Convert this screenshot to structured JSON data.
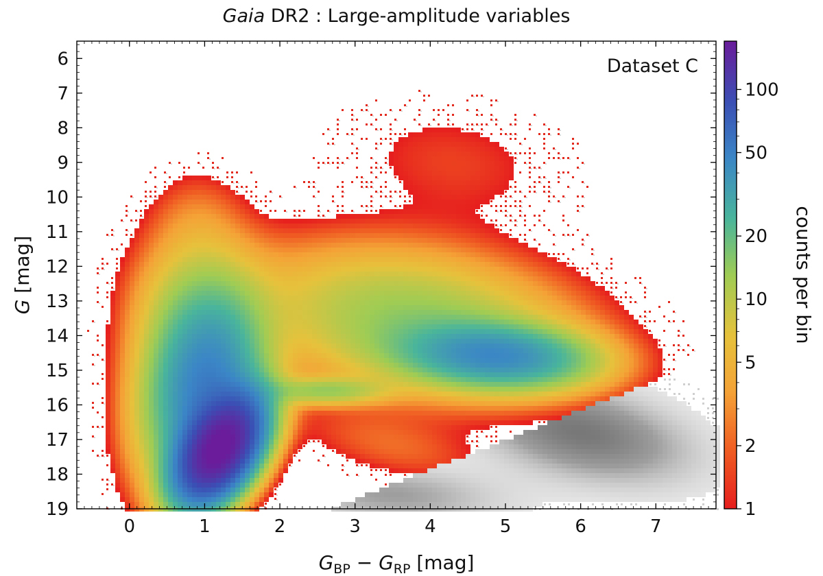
{
  "chart_data": {
    "type": "heatmap",
    "title_italic": "Gaia",
    "title_rest": " DR2 :  Large-amplitude variables",
    "annotation": "Dataset C",
    "xlabel": {
      "main1": "G",
      "sub1": "BP",
      "minus": " − ",
      "main2": "G",
      "sub2": "RP",
      "unit": "  [mag]"
    },
    "ylabel": {
      "main": "G",
      "unit": " [mag]"
    },
    "xlim": [
      -0.7,
      7.8
    ],
    "ylim": [
      19,
      5.5
    ],
    "x_ticks": [
      0,
      1,
      2,
      3,
      4,
      5,
      6,
      7
    ],
    "y_ticks": [
      6,
      7,
      8,
      9,
      10,
      11,
      12,
      13,
      14,
      15,
      16,
      17,
      18,
      19
    ],
    "colorbar": {
      "label": "counts per bin",
      "scale": "log",
      "min": 1,
      "max": 170,
      "ticks": [
        1,
        2,
        5,
        10,
        20,
        50,
        100
      ]
    },
    "density_components": [
      {
        "name": "main-sequence-core",
        "x": 1.2,
        "y": 17.3,
        "sx": 0.34,
        "sy": 0.9,
        "amp": 170,
        "rho": -0.45
      },
      {
        "name": "main-sequence-extension",
        "x": 1.0,
        "y": 15.6,
        "sx": 0.45,
        "sy": 1.5,
        "amp": 45,
        "rho": -0.2
      },
      {
        "name": "main-sequence-upper",
        "x": 0.9,
        "y": 13.6,
        "sx": 0.5,
        "sy": 1.5,
        "amp": 12,
        "rho": 0
      },
      {
        "name": "red-giant-clump",
        "x": 4.9,
        "y": 14.6,
        "sx": 0.75,
        "sy": 0.55,
        "amp": 38,
        "rho": 0.15
      },
      {
        "name": "giant-broad-cloud",
        "x": 3.8,
        "y": 13.6,
        "sx": 1.3,
        "sy": 1.3,
        "amp": 14,
        "rho": 0.25
      },
      {
        "name": "horizontal-branch",
        "x": 2.6,
        "y": 15.6,
        "sx": 0.5,
        "sy": 0.25,
        "amp": 12,
        "rho": 0
      },
      {
        "name": "bright-giants",
        "x": 4.3,
        "y": 9.0,
        "sx": 1.0,
        "sy": 1.2,
        "amp": 1.4,
        "rho": 0.2
      },
      {
        "name": "bright-blue-branch",
        "x": 0.9,
        "y": 10.6,
        "sx": 0.4,
        "sy": 0.9,
        "amp": 1.8,
        "rho": 0
      },
      {
        "name": "blue-faint-tail",
        "x": 0.1,
        "y": 16.5,
        "sx": 0.25,
        "sy": 1.6,
        "amp": 1.3,
        "rho": 0
      },
      {
        "name": "faint-red-wing",
        "x": 3.5,
        "y": 17.2,
        "sx": 0.8,
        "sy": 0.7,
        "amp": 2.0,
        "rho": 0.5
      }
    ],
    "gray_components": [
      {
        "name": "faint-red-population",
        "x": 6.0,
        "y": 16.8,
        "sx": 1.0,
        "sy": 1.0,
        "amp": 1,
        "rho": 0.4
      },
      {
        "name": "faint-red-population-2",
        "x": 3.5,
        "y": 18.6,
        "sx": 1.0,
        "sy": 0.6,
        "amp": 0.6,
        "rho": 0.2
      }
    ]
  }
}
